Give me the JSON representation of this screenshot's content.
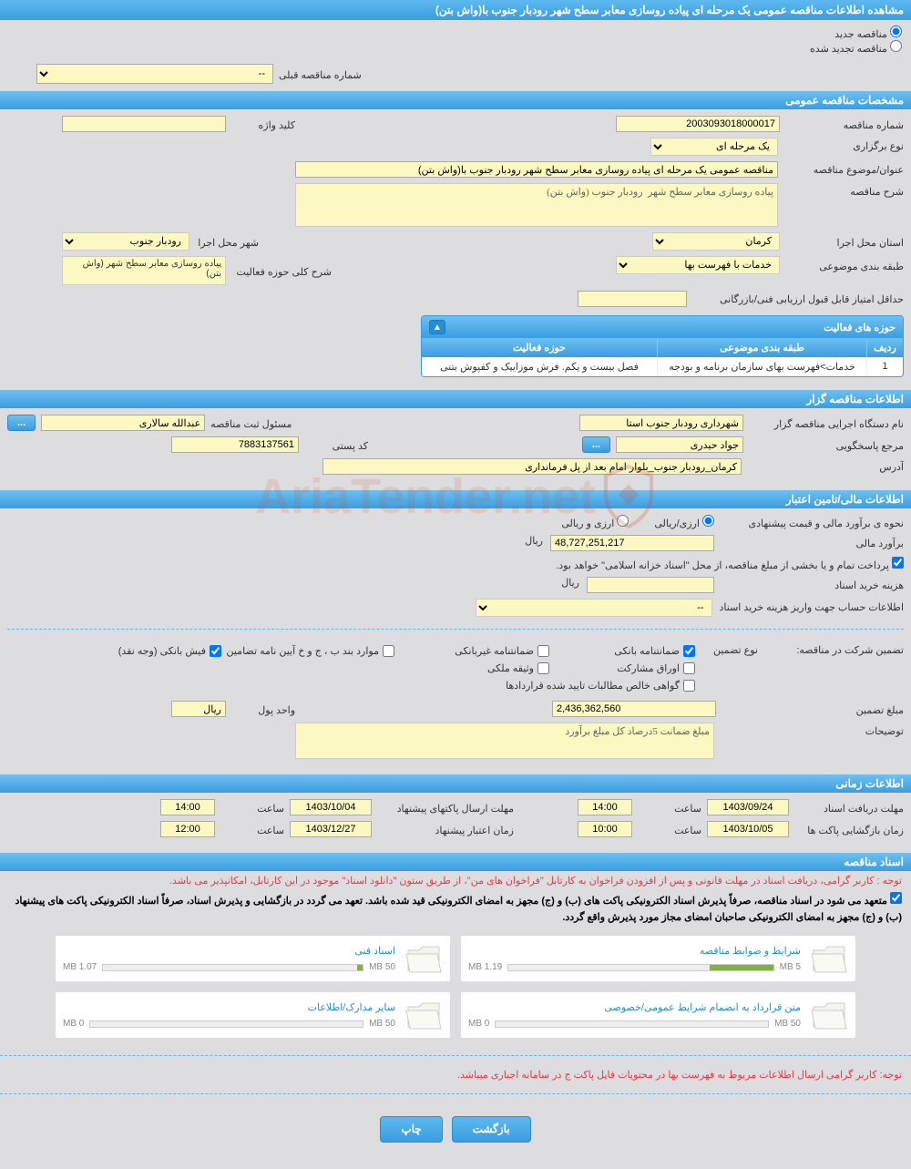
{
  "page_title": "مشاهده اطلاعات مناقصه عمومی یک مرحله ای پیاده روسازی معابر سطح شهر رودبار جنوب با(واش بتن)",
  "top": {
    "radio_new": "مناقصه جدید",
    "radio_renewed": "مناقصه تجدید شده",
    "prev_tender_label": "شماره مناقصه قبلی",
    "prev_tender_value": "--"
  },
  "sections": {
    "general": "مشخصات مناقصه عمومی",
    "tenderer": "اطلاعات مناقصه گزار",
    "financial": "اطلاعات مالی/تامین اعتبار",
    "time": "اطلاعات زمانی",
    "docs": "اسناد مناقصه"
  },
  "general": {
    "tender_no_label": "شماره مناقصه",
    "tender_no": "2003093018000017",
    "keyword_label": "کلید واژه",
    "keyword": "",
    "type_label": "نوع برگزاری",
    "type": "یک مرحله ای",
    "subject_label": "عنوان/موضوع مناقصه",
    "subject": "مناقصه عمومی یک مرحله ای پیاده روسازی معابر سطح شهر رودبار جنوب با(واش بتن)",
    "desc_label": "شرح مناقصه",
    "desc": "پیاده روسازی معابر سطح شهر  رودبار جنوب (واش بتن)",
    "province_label": "استان محل اجرا",
    "province": "کرمان",
    "city_label": "شهر محل اجرا",
    "city": "رودبار جنوب",
    "category_label": "طبقه بندی موضوعی",
    "category": "خدمات با فهرست بها",
    "activity_desc_label": "شرح کلی حوزه فعالیت",
    "activity_desc": "پیاده روسازی معابر سطح شهر (واش بتن)",
    "min_score_label": "حداقل امتیاز قابل قبول ارزیابی فنی/بازرگانی",
    "min_score": "",
    "activity_table": {
      "title": "حوزه های فعالیت",
      "cols": [
        "ردیف",
        "طبقه بندی موضوعی",
        "حوزه فعالیت"
      ],
      "row": [
        "1",
        "خدمات>فهرست بهای سازمان برنامه و بودجه",
        "فصل بیست و یکم. فرش موزاییک و کفپوش بتنی"
      ]
    }
  },
  "tenderer": {
    "org_label": "نام دستگاه اجرایی مناقصه گزار",
    "org": "شهرداری رودبار جنوب استا",
    "officer_label": "مسئول ثبت مناقصه",
    "officer": "عبدالله سالاری",
    "contact_label": "مرجع پاسخگویی",
    "contact": "جواد حیدری",
    "postal_label": "کد پستی",
    "postal": "7883137561",
    "address_label": "آدرس",
    "address": "کرمان_رودبار جنوب_بلوار امام بعد از پل فرمانداری"
  },
  "financial": {
    "method_label": "نحوه ی برآورد مالی و قیمت پیشنهادی",
    "method_opts": [
      "ارزی/ریالی",
      "ارزی و ریالی"
    ],
    "estimate_label": "برآورد مالی",
    "estimate": "48,727,251,217",
    "unit_rial": "ریال",
    "note1": "پرداخت تمام و یا بخشی از مبلغ مناقصه، از محل \"اسناد خزانه اسلامی\" خواهد بود.",
    "doc_fee_label": "هزینه خرید اسناد",
    "doc_fee": "",
    "account_label": "اطلاعات حساب جهت واریز هزینه خرید اسناد",
    "account": "--",
    "guarantee_header": "تضمین شرکت در مناقصه:",
    "guarantee_type_label": "نوع تضمین",
    "checkboxes": {
      "bank_guarantee": "ضمانتنامه بانکی",
      "nonbank_guarantee": "ضمانتنامه غیربانکی",
      "bylaw_items": "موارد بند ب ، ج و خ آیین نامه تضامین",
      "bank_receipt": "فیش بانکی (وجه نقد)",
      "bonds": "اوراق مشارکت",
      "property_deed": "وثیقه ملکی",
      "certificate": "گواهی خالص مطالبات تایید شده قراردادها"
    },
    "guarantee_amt_label": "مبلغ تضمین",
    "guarantee_amt": "2,436,362,560",
    "unit_label": "واحد پول",
    "unit": "ریال",
    "desc_label": "توضیحات",
    "desc": "مبلغ ضمانت 5درصاد کل مبلغ برآورد"
  },
  "time": {
    "doc_deadline_label": "مهلت دریافت اسناد",
    "doc_deadline_date": "1403/09/24",
    "time_label": "ساعت",
    "doc_deadline_time": "14:00",
    "packet_send_label": "مهلت ارسال پاکتهای پیشنهاد",
    "packet_send_date": "1403/10/04",
    "packet_send_time": "14:00",
    "open_label": "زمان بازگشایی پاکت ها",
    "open_date": "1403/10/05",
    "open_time": "10:00",
    "validity_label": "زمان اعتبار پیشنهاد",
    "validity_date": "1403/12/27",
    "validity_time": "12:00"
  },
  "docs": {
    "note_red": "توجه : کاربر گرامی، دریافت اسناد در مهلت قانونی و پس از افزودن فراخوان به کارتابل \"فراخوان های من\"، از طریق ستون \"دانلود اسناد\" موجود در این کارتابل، امکانپذیر می باشد.",
    "note_black": "متعهد می شود در اسناد مناقصه، صرفاً پذیرش اسناد الکترونیکی پاکت های (ب) و (ج) مجهز به امضای الکترونیکی قید شده باشد. تعهد می گردد در بازگشایی و پذیرش اسناد، صرفاً اسناد الکترونیکی پاکت های پیشنهاد (ب) و (ج) مجهز به امضای الکترونیکی صاحبان امضای مجاز مورد پذیرش واقع گردد.",
    "cards": [
      {
        "title": "شرایط و ضوابط مناقصه",
        "used": "1.19 MB",
        "total": "5 MB",
        "pct": 24
      },
      {
        "title": "اسناد فنی",
        "used": "1.07 MB",
        "total": "50 MB",
        "pct": 2
      },
      {
        "title": "متن قرارداد به انضمام شرایط عمومی/خصوصی",
        "used": "0 MB",
        "total": "50 MB",
        "pct": 0
      },
      {
        "title": "سایر مدارک/اطلاعات",
        "used": "0 MB",
        "total": "50 MB",
        "pct": 0
      }
    ],
    "note_red2": "توجه: کاربر گرامی ارسال اطلاعات مربوط به فهرست بها در محتویات فایل پاکت ج در سامانه اجباری میباشد."
  },
  "buttons": {
    "back": "بازگشت",
    "print": "چاپ"
  },
  "watermark": "AriaTender.net",
  "colors": {
    "header_bg": "#3a9de0",
    "field_bg": "#fbf8c1",
    "page_bg": "#dddddf",
    "red": "#e63946",
    "progress": "#7cb342"
  }
}
